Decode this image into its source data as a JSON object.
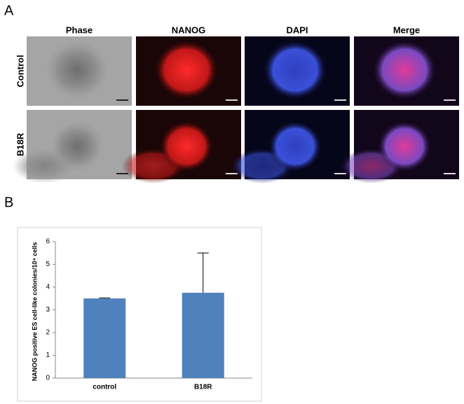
{
  "panel_a": {
    "label": "A",
    "columns": [
      "Phase",
      "NANOG",
      "DAPI",
      "Merge"
    ],
    "rows": [
      "Control",
      "B18R"
    ]
  },
  "chart_data": {
    "type": "bar",
    "label": "B",
    "ylabel": "NANOG positive ES cell-like colonies/10⁴ cells",
    "categories": [
      "control",
      "B18R"
    ],
    "values": [
      3.5,
      3.75
    ],
    "errors": [
      0.02,
      1.75
    ],
    "color": "#4f81bd",
    "ylim": [
      0,
      6
    ],
    "yticks": [
      0,
      1,
      2,
      3,
      4,
      5,
      6
    ],
    "grid": false
  }
}
